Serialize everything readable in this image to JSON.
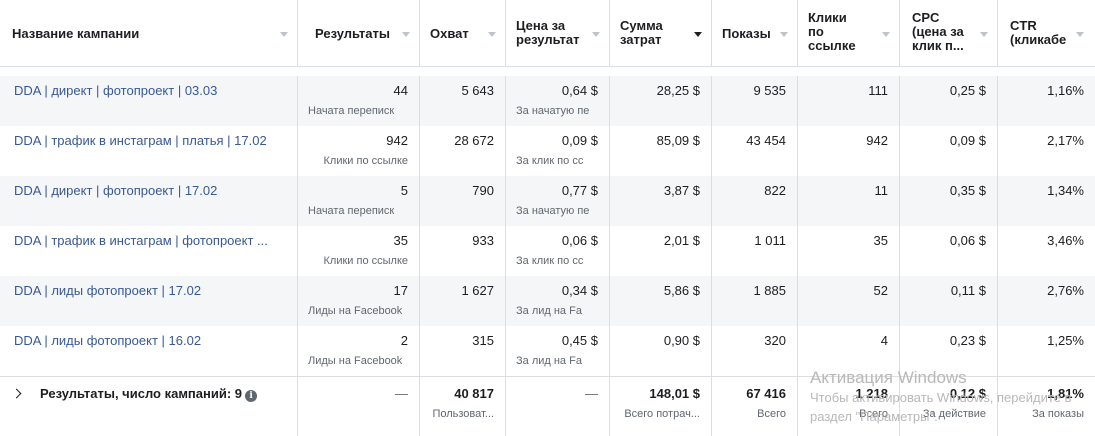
{
  "columns": [
    {
      "label": "Название кампании"
    },
    {
      "label": "Результаты"
    },
    {
      "label": "Охват"
    },
    {
      "label": "Цена за\nрезультат"
    },
    {
      "label": "Сумма\nзатрат"
    },
    {
      "label": "Показы"
    },
    {
      "label": "Клики\nпо\nссылке"
    },
    {
      "label": "CPC\n(цена за\nклик п..."
    },
    {
      "label": "CTR\n(кликабе"
    }
  ],
  "rows": [
    {
      "name": "DDA | директ | фотопроект | 03.03",
      "results": "44",
      "results_sub": "Начата переписк",
      "reach": "5 643",
      "cpr": "0,64 $",
      "cpr_sub": "За начатую пе",
      "spend": "28,25 $",
      "impressions": "9 535",
      "clicks": "111",
      "cpc": "0,25 $",
      "ctr": "1,16%"
    },
    {
      "name": "DDA | трафик в инстаграм | платья | 17.02",
      "results": "942",
      "results_sub": "Клики по ссылке",
      "reach": "28 672",
      "cpr": "0,09 $",
      "cpr_sub": "За клик по сс",
      "spend": "85,09 $",
      "impressions": "43 454",
      "clicks": "942",
      "cpc": "0,09 $",
      "ctr": "2,17%"
    },
    {
      "name": "DDA | директ | фотопроект | 17.02",
      "results": "5",
      "results_sub": "Начата переписк",
      "reach": "790",
      "cpr": "0,77 $",
      "cpr_sub": "За начатую пе",
      "spend": "3,87 $",
      "impressions": "822",
      "clicks": "11",
      "cpc": "0,35 $",
      "ctr": "1,34%"
    },
    {
      "name": "DDA | трафик в инстаграм | фотопроект ...",
      "results": "35",
      "results_sub": "Клики по ссылке",
      "reach": "933",
      "cpr": "0,06 $",
      "cpr_sub": "За клик по сс",
      "spend": "2,01 $",
      "impressions": "1 011",
      "clicks": "35",
      "cpc": "0,06 $",
      "ctr": "3,46%"
    },
    {
      "name": "DDA | лиды фотопроект | 17.02",
      "results": "17",
      "results_sub": "Лиды на Facebook",
      "reach": "1 627",
      "cpr": "0,34 $",
      "cpr_sub": "За лид на Fa",
      "spend": "5,86 $",
      "impressions": "1 885",
      "clicks": "52",
      "cpc": "0,11 $",
      "ctr": "2,76%"
    },
    {
      "name": "DDA | лиды фотопроект | 16.02",
      "results": "2",
      "results_sub": "Лиды на Facebook",
      "reach": "315",
      "cpr": "0,45 $",
      "cpr_sub": "За лид на Fa",
      "spend": "0,90 $",
      "impressions": "320",
      "clicks": "4",
      "cpc": "0,23 $",
      "ctr": "1,25%"
    }
  ],
  "totals": {
    "label": "Результаты, число кампаний: 9",
    "info_icon": "i",
    "results": "—",
    "reach": "40 817",
    "reach_sub": "Пользоват...",
    "cpr": "—",
    "spend": "148,01 $",
    "spend_sub": "Всего потрач...",
    "impressions": "67 416",
    "impressions_sub": "Всего",
    "clicks": "1 218",
    "clicks_sub": "Всего",
    "cpc": "0,12 $",
    "cpc_sub": "За действие",
    "ctr": "1,81%",
    "ctr_sub": "За показы"
  },
  "watermark": {
    "title": "Активация Windows",
    "line1": "Чтобы активировать Windows, перейдите в",
    "line2": "раздел \"Параметры\"."
  },
  "colors": {
    "link": "#385898",
    "border": "#dadde1",
    "shade": "#f5f6f7",
    "muted": "#606770"
  }
}
